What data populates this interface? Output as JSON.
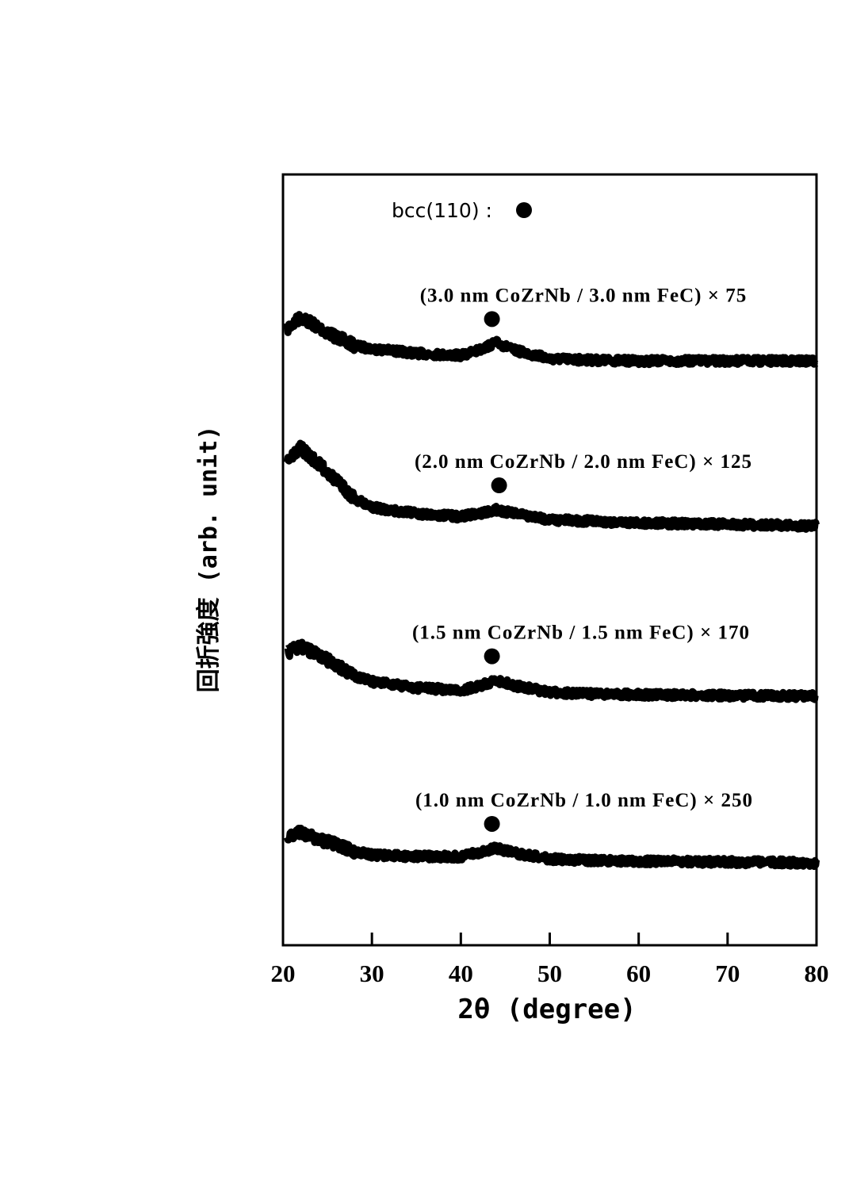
{
  "chart_data": {
    "type": "line",
    "xlabel": "2θ (degree)",
    "ylabel": "回折強度 (arb. unit)",
    "xlim": [
      20,
      80
    ],
    "xticks": [
      "20",
      "30",
      "40",
      "50",
      "60",
      "70",
      "80"
    ],
    "ylim": [
      0,
      100
    ],
    "grid": false,
    "legend": {
      "label": "bcc(110) :",
      "marker": "filled-circle",
      "position": "top"
    },
    "marker_x": 43.5,
    "series": [
      {
        "name": "(3.0 nm CoZrNb / 3.0 nm FeC) × 75",
        "x": [
          20.5,
          22,
          25,
          28,
          30,
          35,
          40,
          42,
          44,
          46,
          50,
          55,
          60,
          70,
          80
        ],
        "y": [
          80.0,
          81.5,
          79.5,
          77.8,
          77.4,
          76.8,
          76.5,
          77.2,
          78.2,
          77.2,
          76.1,
          75.9,
          75.8,
          75.8,
          75.8
        ]
      },
      {
        "name": "(2.0 nm CoZrNb / 2.0 nm FeC) × 125",
        "x": [
          20.5,
          22,
          25,
          28,
          30,
          35,
          40,
          42,
          44,
          46,
          50,
          55,
          60,
          70,
          80
        ],
        "y": [
          63.0,
          64.5,
          61.4,
          58.0,
          56.8,
          56.0,
          55.6,
          56.0,
          56.5,
          56.0,
          55.2,
          55.0,
          54.8,
          54.6,
          54.4
        ]
      },
      {
        "name": "(1.5 nm CoZrNb / 1.5 nm FeC) × 170",
        "x": [
          20.5,
          22,
          25,
          28,
          30,
          35,
          40,
          42,
          44,
          46,
          50,
          55,
          60,
          70,
          80
        ],
        "y": [
          38.0,
          38.8,
          37.0,
          35.0,
          34.2,
          33.4,
          33.1,
          33.6,
          34.4,
          33.7,
          32.8,
          32.6,
          32.5,
          32.4,
          32.3
        ]
      },
      {
        "name": "(1.0 nm CoZrNb / 1.0 nm FeC) × 250",
        "x": [
          20.5,
          22,
          25,
          28,
          30,
          35,
          40,
          42,
          44,
          46,
          50,
          55,
          60,
          70,
          80
        ],
        "y": [
          14.2,
          14.6,
          13.4,
          12.2,
          11.7,
          11.5,
          11.5,
          12.0,
          12.6,
          12.0,
          11.2,
          11.0,
          10.9,
          10.8,
          10.7
        ]
      }
    ]
  }
}
